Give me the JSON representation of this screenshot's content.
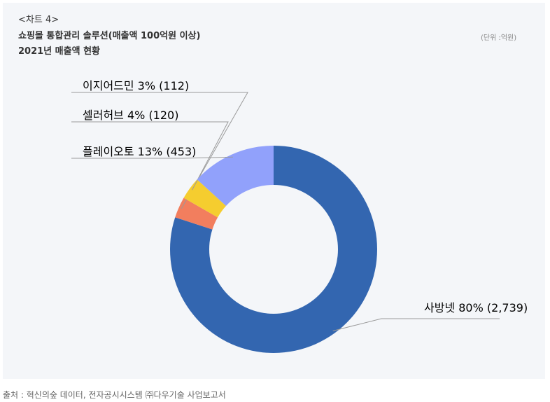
{
  "header": {
    "chart_tag": "<차트 4>",
    "title": "쇼핑몰 통합관리 솔루션(매출액 100억원 이상)",
    "subtitle": "2021년 매출액 현황",
    "unit": "(단위 :억원)"
  },
  "source": "출처 : 혁신의숲 데이터, 전자공시시스템 ㈜다우기술 사업보고서",
  "chart_data": {
    "type": "pie",
    "title": "쇼핑몰 통합관리 솔루션(매출액 100억원 이상)",
    "subtitle": "2021년 매출액 현황",
    "unit": "억원",
    "donut": true,
    "legend": "none",
    "slices": [
      {
        "name": "사방넷",
        "percent_label": "80%",
        "value": 2739,
        "value_label": "(2,739)",
        "color": "#3366b0"
      },
      {
        "name": "이지어드민",
        "percent_label": "3%",
        "value": 112,
        "value_label": "(112)",
        "color": "#f27e5e"
      },
      {
        "name": "셀러허브",
        "percent_label": "4%",
        "value": 120,
        "value_label": "(120)",
        "color": "#f5cd2f"
      },
      {
        "name": "플레이오토",
        "percent_label": "13%",
        "value": 453,
        "value_label": "(453)",
        "color": "#91a1fb"
      }
    ]
  }
}
